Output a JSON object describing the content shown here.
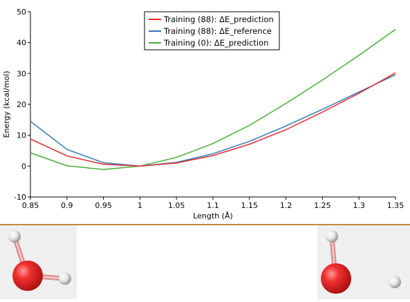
{
  "chart_data": {
    "type": "line",
    "xlabel": "Length (Å)",
    "ylabel": "Energy (kcal/mol)",
    "xlim": [
      0.85,
      1.35
    ],
    "ylim": [
      -10,
      50
    ],
    "xticks": [
      "0.85",
      "0.9",
      "0.95",
      "1",
      "1.05",
      "1.1",
      "1.15",
      "1.2",
      "1.25",
      "1.3",
      "1.35"
    ],
    "yticks": [
      "-10",
      "0",
      "10",
      "20",
      "30",
      "40",
      "50"
    ],
    "grid": false,
    "legend_position": "top-center",
    "x": [
      0.85,
      0.9,
      0.95,
      1.0,
      1.05,
      1.1,
      1.15,
      1.2,
      1.25,
      1.3,
      1.35
    ],
    "series": [
      {
        "name": "Training  (88): ΔE_prediction",
        "color": "#e8282b",
        "values": [
          8.8,
          3.3,
          0.6,
          0.0,
          1.0,
          3.4,
          7.1,
          11.8,
          17.5,
          23.6,
          30.2
        ]
      },
      {
        "name": "Training  (88): ΔE_reference",
        "color": "#2e78b8",
        "values": [
          14.5,
          5.4,
          1.1,
          0.0,
          1.2,
          4.0,
          8.0,
          13.0,
          18.4,
          24.0,
          29.6
        ]
      },
      {
        "name": "Training  (0): ΔE_prediction",
        "color": "#45b035",
        "values": [
          4.3,
          0.1,
          -1.1,
          0.0,
          2.8,
          7.3,
          13.2,
          20.3,
          27.9,
          35.9,
          44.3
        ]
      }
    ]
  },
  "colors": {
    "divider": "#c8863a",
    "viewer_background": "#efefef",
    "oxygen": "#e11d1d",
    "hydrogen": "#eeeeee",
    "bond_hydrogen": "#e8a0a0"
  },
  "viewers": [
    {
      "name": "molecule-viewer-left",
      "molecule": "water"
    },
    {
      "name": "molecule-viewer-right",
      "molecule": "water"
    }
  ]
}
